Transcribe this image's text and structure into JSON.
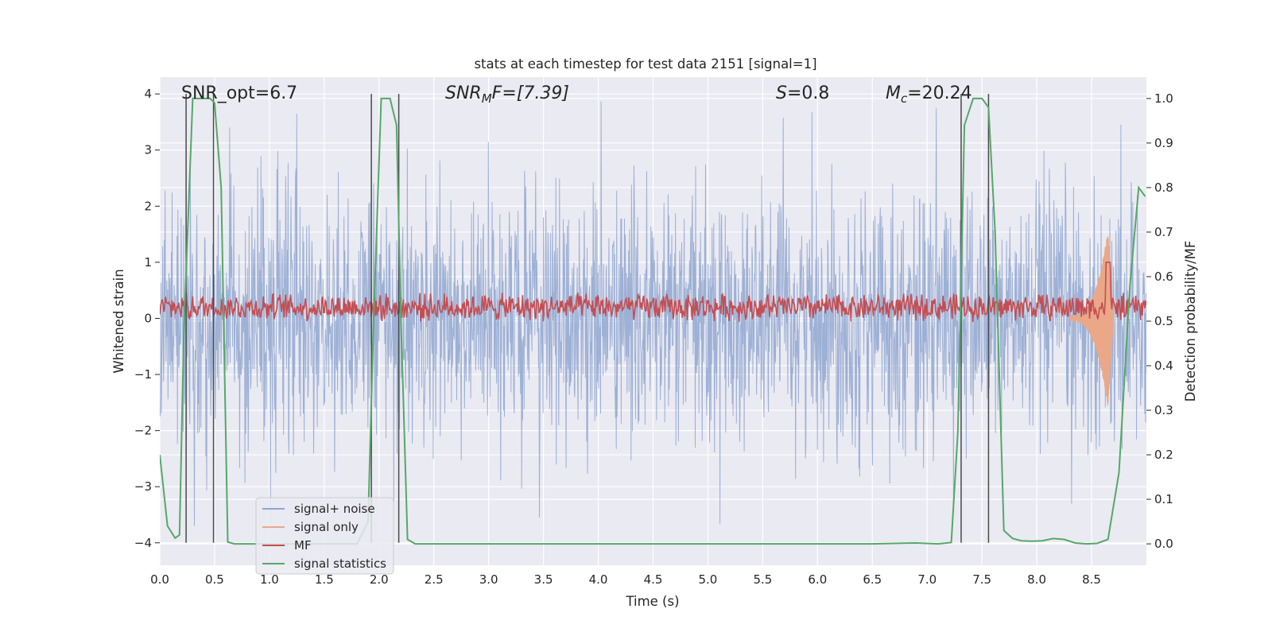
{
  "chart_data": {
    "type": "line",
    "title": "stats at each timestep for test data 2151 [signal=1]",
    "xlabel": "Time (s)",
    "ylabel": "Whitened strain",
    "y2label": "Detection probability/MF",
    "xlim": [
      0,
      9.0
    ],
    "ylim": [
      -4.4,
      4.3
    ],
    "y2lim": [
      -0.048,
      1.048
    ],
    "xticks": [
      "0.0",
      "0.5",
      "1.0",
      "1.5",
      "2.0",
      "2.5",
      "3.0",
      "3.5",
      "4.0",
      "4.5",
      "5.0",
      "5.5",
      "6.0",
      "6.5",
      "7.0",
      "7.5",
      "8.0",
      "8.5"
    ],
    "yticks": [
      "−4",
      "−3",
      "−2",
      "−1",
      "0",
      "1",
      "2",
      "3",
      "4"
    ],
    "y2ticks": [
      "0.0",
      "0.1",
      "0.2",
      "0.3",
      "0.4",
      "0.5",
      "0.6",
      "0.7",
      "0.8",
      "0.9",
      "1.0"
    ],
    "annotations": {
      "snr_opt": "SNR_opt=6.7",
      "snr_mf_base": "SNR",
      "snr_mf_sub": "M",
      "snr_mf_rest": "F=[7.39]",
      "s_var": "S",
      "s_rest": "=0.8",
      "mc_base": "M",
      "mc_sub": "c",
      "mc_rest": "=20.24"
    },
    "legend": {
      "position": "lower-left",
      "entries": [
        {
          "label": "signal+ noise",
          "color": "#8fa6d0"
        },
        {
          "label": "signal only",
          "color": "#eaa888"
        },
        {
          "label": "MF",
          "color": "#c44e52"
        },
        {
          "label": "signal statistics",
          "color": "#55a868"
        }
      ]
    },
    "vlines": [
      0.24,
      0.49,
      1.93,
      2.18,
      7.31,
      7.56
    ],
    "vline_range": [
      -4.0,
      4.0
    ],
    "signal_statistics": {
      "t": [
        0.0,
        0.07,
        0.14,
        0.18,
        0.22,
        0.3,
        0.38,
        0.46,
        0.5,
        0.56,
        0.62,
        0.68,
        0.75,
        0.85,
        1.0,
        1.2,
        1.5,
        1.8,
        1.9,
        1.95,
        2.02,
        2.1,
        2.16,
        2.2,
        2.26,
        2.33,
        2.5,
        3.0,
        3.5,
        4.0,
        4.5,
        5.0,
        5.5,
        6.0,
        6.5,
        6.9,
        7.1,
        7.22,
        7.28,
        7.34,
        7.42,
        7.5,
        7.56,
        7.62,
        7.7,
        7.78,
        7.86,
        7.95,
        8.05,
        8.15,
        8.25,
        8.35,
        8.45,
        8.55,
        8.65,
        8.75,
        8.85,
        8.93,
        8.99
      ],
      "p": [
        0.2,
        0.04,
        0.013,
        0.02,
        0.48,
        1.0,
        1.0,
        1.0,
        0.99,
        0.8,
        0.004,
        0.0,
        0.0,
        0.0,
        0.0,
        0.0,
        0.0,
        0.0,
        0.05,
        0.5,
        1.0,
        1.0,
        0.94,
        0.5,
        0.01,
        0.0,
        0.0,
        0.0,
        0.0,
        0.0,
        0.0,
        0.0,
        0.0,
        0.0,
        0.0,
        0.002,
        0.0,
        0.003,
        0.25,
        0.94,
        1.0,
        1.0,
        0.98,
        0.7,
        0.03,
        0.012,
        0.007,
        0.006,
        0.007,
        0.012,
        0.01,
        0.002,
        0.0,
        0.001,
        0.01,
        0.16,
        0.58,
        0.8,
        0.78
      ]
    },
    "signal_only": {
      "t_start": 8.3,
      "t_peak": 8.65,
      "t_end": 8.7,
      "amp_start": 0.05,
      "amp_peak": 1.6
    },
    "mf_band": {
      "center": 0.2,
      "amplitude": 0.25
    },
    "noise_band": {
      "std": 1.1,
      "max": 3.9,
      "min": -3.7
    }
  }
}
